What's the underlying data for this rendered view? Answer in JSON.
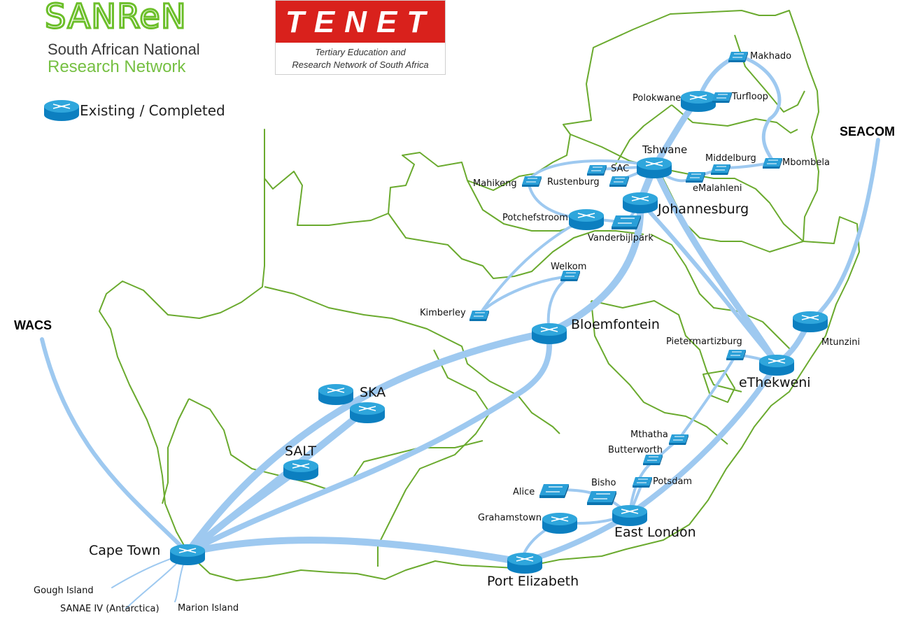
{
  "logos": {
    "sanren_word": "SANReN",
    "sanren_line1": "South African National",
    "sanren_line2": "Research Network",
    "tenet_word": "TENET",
    "tenet_line1": "Tertiary Education and",
    "tenet_line2": "Research Network of South Africa"
  },
  "legend": {
    "existing": "Existing / Completed"
  },
  "external": {
    "wacs": "WACS",
    "seacom": "SEACOM"
  },
  "colors": {
    "border": "#6aaa2e",
    "link": "#9ec9f0",
    "router_top": "#2fa6dc",
    "router_side": "#0c7fc0",
    "sanren_green": "#76c043",
    "tenet_red": "#d9211c"
  },
  "nodes": {
    "makhado": "Makhado",
    "polokwane": "Polokwane",
    "turfloop": "Turfloop",
    "seacom": "SEACOM",
    "tshwane": "Tshwane",
    "middelburg": "Middelburg",
    "mbombela": "Mbombela",
    "mahikeng": "Mahikeng",
    "rustenburg": "Rustenburg",
    "sac": "SAC",
    "emalahleni": "eMalahleni",
    "johannesburg": "Johannesburg",
    "potchefstroom": "Potchefstroom",
    "vanderbijlpark": "Vanderbijlpark",
    "welkom": "Welkom",
    "kimberley": "Kimberley",
    "bloemfontein": "Bloemfontein",
    "mtunzini": "Mtunzini",
    "pietermaritzburg": "Pietermartizburg",
    "ethekweni": "eThekweni",
    "ska": "SKA",
    "salt": "SALT",
    "mthatha": "Mthatha",
    "butterworth": "Butterworth",
    "potsdam": "Potsdam",
    "alice": "Alice",
    "bisho": "Bisho",
    "grahamstown": "Grahamstown",
    "east_london": "East London",
    "cape_town": "Cape Town",
    "port_elizabeth": "Port Elizabeth",
    "gough_island": "Gough Island",
    "sanae": "SANAE IV (Antarctica)",
    "marion_island": "Marion Island"
  }
}
